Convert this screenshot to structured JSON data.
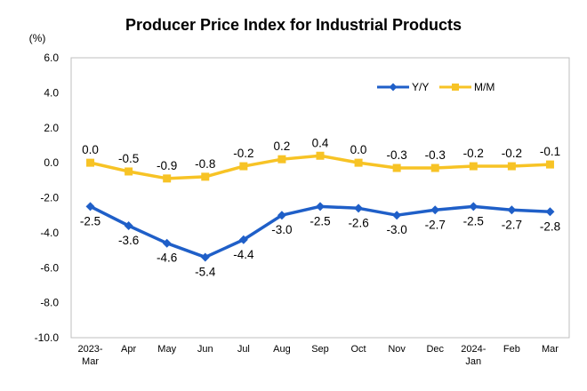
{
  "chart_data": {
    "type": "line",
    "title": "Producer Price Index for Industrial Products",
    "ylabel": "(%)",
    "xlabel": "",
    "ylim": [
      -10,
      6
    ],
    "yticks": [
      6,
      4,
      2,
      0,
      -2,
      -4,
      -6,
      -8,
      -10
    ],
    "ytick_labels": [
      "6.0",
      "4.0",
      "2.0",
      "0.0",
      "-2.0",
      "-4.0",
      "-6.0",
      "-8.0",
      "-10.0"
    ],
    "categories": [
      [
        "2023-",
        "Mar"
      ],
      [
        "Apr"
      ],
      [
        "May"
      ],
      [
        "Jun"
      ],
      [
        "Jul"
      ],
      [
        "Aug"
      ],
      [
        "Sep"
      ],
      [
        "Oct"
      ],
      [
        "Nov"
      ],
      [
        "Dec"
      ],
      [
        "2024-",
        "Jan"
      ],
      [
        "Feb"
      ],
      [
        "Mar"
      ]
    ],
    "legend_position": "top-right",
    "grid": false,
    "series": [
      {
        "name": "Y/Y",
        "color": "#1f5fc8",
        "marker": "diamond",
        "values": [
          -2.5,
          -3.6,
          -4.6,
          -5.4,
          -4.4,
          -3.0,
          -2.5,
          -2.6,
          -3.0,
          -2.7,
          -2.5,
          -2.7,
          -2.8
        ],
        "labels": [
          "-2.5",
          "-3.6",
          "-4.6",
          "-5.4",
          "-4.4",
          "-3.0",
          "-2.5",
          "-2.6",
          "-3.0",
          "-2.7",
          "-2.5",
          "-2.7",
          "-2.8"
        ],
        "label_position": "below"
      },
      {
        "name": "M/M",
        "color": "#f7c325",
        "marker": "square",
        "values": [
          0.0,
          -0.5,
          -0.9,
          -0.8,
          -0.2,
          0.2,
          0.4,
          0.0,
          -0.3,
          -0.3,
          -0.2,
          -0.2,
          -0.1
        ],
        "labels": [
          "0.0",
          "-0.5",
          "-0.9",
          "-0.8",
          "-0.2",
          "0.2",
          "0.4",
          "0.0",
          "-0.3",
          "-0.3",
          "-0.2",
          "-0.2",
          "-0.1"
        ],
        "label_position": "above"
      }
    ]
  }
}
